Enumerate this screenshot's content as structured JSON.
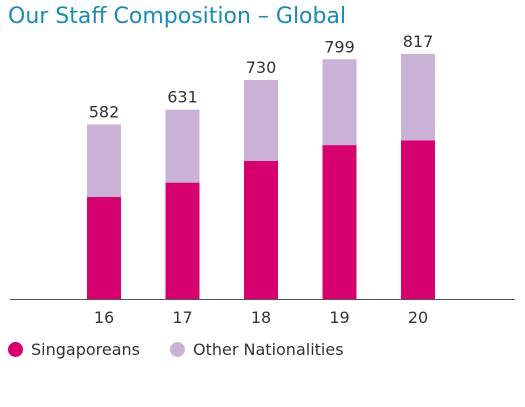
{
  "chart_data": {
    "type": "bar",
    "title": "Our Staff Composition – Global",
    "categories": [
      "16",
      "17",
      "18",
      "19",
      "20"
    ],
    "totals": [
      582,
      631,
      730,
      799,
      817
    ],
    "series": [
      {
        "name": "Singaporeans",
        "values": [
          340,
          388,
          460,
          513,
          529
        ],
        "color": "#d6006e"
      },
      {
        "name": "Other Nationalities",
        "values": [
          242,
          243,
          270,
          286,
          288
        ],
        "color": "#c9b2d6"
      }
    ],
    "stacked": true,
    "ylim": [
      0,
      900
    ],
    "legend_position": "bottom-left",
    "title_color": "#1a8bb5",
    "axis_color": "#555555"
  }
}
